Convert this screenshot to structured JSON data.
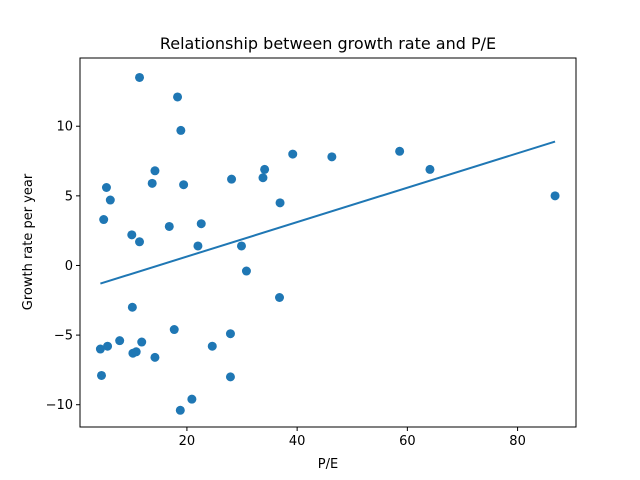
{
  "chart_data": {
    "type": "scatter",
    "title": "Relationship between growth rate and P/E",
    "xlabel": "P/E",
    "ylabel": "Growth rate per year",
    "xlim": [
      0.6,
      90.6
    ],
    "ylim": [
      -11.6,
      14.9
    ],
    "xticks": [
      20,
      40,
      60,
      80
    ],
    "yticks": [
      -10,
      -5,
      0,
      5,
      10
    ],
    "grid": false,
    "colors": {
      "points": "#1f77b4",
      "trend": "#1f77b4"
    },
    "points": [
      {
        "x": 4.3,
        "y": -6.0
      },
      {
        "x": 4.5,
        "y": -7.9
      },
      {
        "x": 4.9,
        "y": 3.3
      },
      {
        "x": 5.4,
        "y": 5.6
      },
      {
        "x": 5.6,
        "y": -5.8
      },
      {
        "x": 6.1,
        "y": 4.7
      },
      {
        "x": 7.8,
        "y": -5.4
      },
      {
        "x": 10.0,
        "y": 2.2
      },
      {
        "x": 10.1,
        "y": -3.0
      },
      {
        "x": 10.2,
        "y": -6.3
      },
      {
        "x": 10.8,
        "y": -6.2
      },
      {
        "x": 11.4,
        "y": 1.7
      },
      {
        "x": 11.4,
        "y": 13.5
      },
      {
        "x": 11.8,
        "y": -5.5
      },
      {
        "x": 13.7,
        "y": 5.9
      },
      {
        "x": 14.2,
        "y": 6.8
      },
      {
        "x": 14.2,
        "y": -6.6
      },
      {
        "x": 16.8,
        "y": 2.8
      },
      {
        "x": 17.7,
        "y": -4.6
      },
      {
        "x": 18.3,
        "y": 12.1
      },
      {
        "x": 18.8,
        "y": -10.4
      },
      {
        "x": 18.9,
        "y": 9.7
      },
      {
        "x": 19.4,
        "y": 5.8
      },
      {
        "x": 20.9,
        "y": -9.6
      },
      {
        "x": 22.0,
        "y": 1.4
      },
      {
        "x": 22.6,
        "y": 3.0
      },
      {
        "x": 24.6,
        "y": -5.8
      },
      {
        "x": 27.9,
        "y": -4.9
      },
      {
        "x": 27.9,
        "y": -8.0
      },
      {
        "x": 28.1,
        "y": 6.2
      },
      {
        "x": 29.9,
        "y": 1.4
      },
      {
        "x": 30.8,
        "y": -0.4
      },
      {
        "x": 33.8,
        "y": 6.3
      },
      {
        "x": 34.1,
        "y": 6.9
      },
      {
        "x": 36.8,
        "y": -2.3
      },
      {
        "x": 36.9,
        "y": 4.5
      },
      {
        "x": 39.2,
        "y": 8.0
      },
      {
        "x": 46.3,
        "y": 7.8
      },
      {
        "x": 58.6,
        "y": 8.2
      },
      {
        "x": 64.1,
        "y": 6.9
      },
      {
        "x": 86.8,
        "y": 5.0
      }
    ],
    "trendline": {
      "x": [
        4.3,
        86.8
      ],
      "y": [
        -1.3,
        8.9
      ]
    }
  }
}
